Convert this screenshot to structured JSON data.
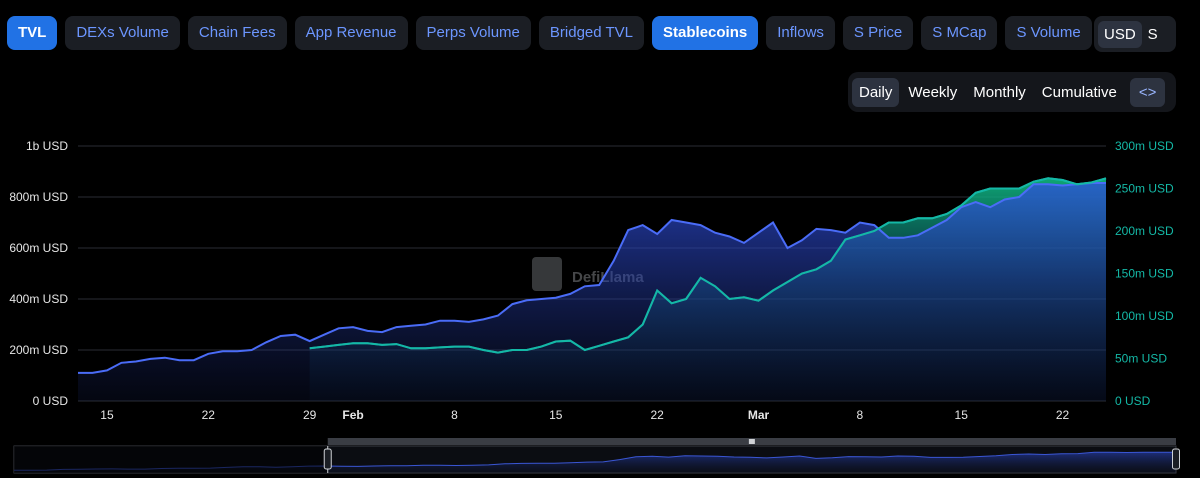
{
  "metric_tabs": [
    {
      "label": "TVL",
      "active": true
    },
    {
      "label": "DEXs Volume",
      "active": false
    },
    {
      "label": "Chain Fees",
      "active": false
    },
    {
      "label": "App Revenue",
      "active": false
    },
    {
      "label": "Perps Volume",
      "active": false
    },
    {
      "label": "Bridged TVL",
      "active": false
    },
    {
      "label": "Stablecoins",
      "active": true
    },
    {
      "label": "Inflows",
      "active": false
    },
    {
      "label": "S Price",
      "active": false
    },
    {
      "label": "S MCap",
      "active": false
    },
    {
      "label": "S Volume",
      "active": false
    }
  ],
  "currency": {
    "options": [
      "USD",
      "S"
    ],
    "selected": "USD"
  },
  "periods": {
    "options": [
      "Daily",
      "Weekly",
      "Monthly",
      "Cumulative"
    ],
    "selected": "Daily",
    "embed_icon": "code-icon"
  },
  "watermark": "DefiLlama",
  "colors": {
    "tvl": "#4a6cf7",
    "stablecoins": "#14b8a6",
    "background": "#000000",
    "active_tab": "#2172e5"
  },
  "chart_data": {
    "type": "area",
    "x_ticks": [
      "15",
      "22",
      "29",
      "Feb",
      "8",
      "15",
      "22",
      "Mar",
      "8",
      "15",
      "22"
    ],
    "x_tick_days": [
      15,
      22,
      29,
      32,
      39,
      46,
      53,
      60,
      67,
      74,
      81
    ],
    "x_range_days": [
      13,
      84
    ],
    "y_left": {
      "ticks": [
        "0 USD",
        "200m USD",
        "400m USD",
        "600m USD",
        "800m USD",
        "1b USD"
      ],
      "range": [
        0,
        1000000000
      ]
    },
    "y_right": {
      "ticks": [
        "0 USD",
        "50m USD",
        "100m USD",
        "150m USD",
        "200m USD",
        "250m USD",
        "300m USD"
      ],
      "range": [
        0,
        300000000
      ]
    },
    "series": [
      {
        "name": "TVL",
        "axis": "left",
        "x": [
          13,
          14,
          15,
          16,
          17,
          18,
          19,
          20,
          21,
          22,
          23,
          24,
          25,
          26,
          27,
          28,
          29,
          30,
          31,
          32,
          33,
          34,
          35,
          36,
          37,
          38,
          39,
          40,
          41,
          42,
          43,
          44,
          45,
          46,
          47,
          48,
          49,
          50,
          51,
          52,
          53,
          54,
          55,
          56,
          57,
          58,
          59,
          60,
          61,
          62,
          63,
          64,
          65,
          66,
          67,
          68,
          69,
          70,
          71,
          72,
          73,
          74,
          75,
          76,
          77,
          78,
          79,
          80,
          81,
          82,
          83,
          84
        ],
        "values": [
          110,
          110,
          120,
          150,
          155,
          165,
          170,
          160,
          160,
          185,
          195,
          195,
          200,
          230,
          255,
          260,
          235,
          260,
          285,
          290,
          275,
          270,
          290,
          295,
          300,
          315,
          315,
          310,
          320,
          335,
          380,
          395,
          400,
          405,
          420,
          450,
          455,
          550,
          670,
          690,
          655,
          710,
          700,
          690,
          660,
          645,
          620,
          660,
          700,
          600,
          630,
          675,
          670,
          660,
          700,
          690,
          640,
          640,
          650,
          680,
          710,
          760,
          780,
          760,
          790,
          800,
          850,
          850,
          845,
          850,
          855,
          855
        ],
        "unit": "m USD"
      },
      {
        "name": "Stablecoins",
        "axis": "right",
        "x": [
          29,
          30,
          31,
          32,
          33,
          34,
          35,
          36,
          37,
          38,
          39,
          40,
          41,
          42,
          43,
          44,
          45,
          46,
          47,
          48,
          49,
          50,
          51,
          52,
          53,
          54,
          55,
          56,
          57,
          58,
          59,
          60,
          61,
          62,
          63,
          64,
          65,
          66,
          67,
          68,
          69,
          70,
          71,
          72,
          73,
          74,
          75,
          76,
          77,
          78,
          79,
          80,
          81,
          82,
          83,
          84
        ],
        "values": [
          62,
          64,
          66,
          68,
          68,
          66,
          67,
          62,
          62,
          63,
          64,
          64,
          60,
          57,
          60,
          60,
          64,
          70,
          71,
          60,
          65,
          70,
          75,
          90,
          130,
          115,
          120,
          145,
          135,
          120,
          122,
          118,
          130,
          140,
          150,
          155,
          165,
          190,
          195,
          200,
          210,
          210,
          215,
          215,
          220,
          230,
          245,
          250,
          250,
          250,
          258,
          262,
          260,
          255,
          257,
          262
        ],
        "unit": "m USD"
      }
    ],
    "grid": true,
    "legend": "none",
    "range_selector": {
      "start_fraction": 0.27,
      "end_fraction": 1.0
    }
  }
}
